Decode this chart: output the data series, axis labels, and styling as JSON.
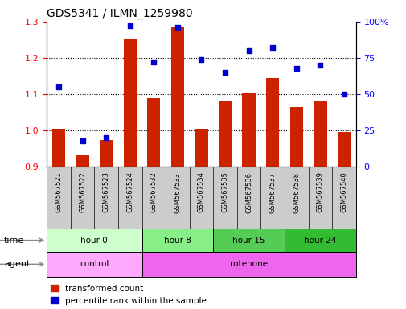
{
  "title": "GDS5341 / ILMN_1259980",
  "samples": [
    "GSM567521",
    "GSM567522",
    "GSM567523",
    "GSM567524",
    "GSM567532",
    "GSM567533",
    "GSM567534",
    "GSM567535",
    "GSM567536",
    "GSM567537",
    "GSM567538",
    "GSM567539",
    "GSM567540"
  ],
  "bar_values": [
    1.005,
    0.935,
    0.975,
    1.25,
    1.09,
    1.285,
    1.005,
    1.08,
    1.105,
    1.145,
    1.065,
    1.08,
    0.995
  ],
  "dot_values": [
    55,
    18,
    20,
    97,
    72,
    96,
    74,
    65,
    80,
    82,
    68,
    70,
    50
  ],
  "bar_color": "#cc2200",
  "dot_color": "#0000cc",
  "ylim_left": [
    0.9,
    1.3
  ],
  "ylim_right": [
    0,
    100
  ],
  "yticks_left": [
    0.9,
    1.0,
    1.1,
    1.2,
    1.3
  ],
  "yticks_right": [
    0,
    25,
    50,
    75,
    100
  ],
  "ytick_labels_right": [
    "0",
    "25",
    "50",
    "75",
    "100%"
  ],
  "hgrid_lines": [
    1.0,
    1.1,
    1.2
  ],
  "groups_time": [
    {
      "label": "hour 0",
      "start": 0,
      "end": 4,
      "color": "#ccffcc"
    },
    {
      "label": "hour 8",
      "start": 4,
      "end": 7,
      "color": "#88ee88"
    },
    {
      "label": "hour 15",
      "start": 7,
      "end": 10,
      "color": "#55cc55"
    },
    {
      "label": "hour 24",
      "start": 10,
      "end": 13,
      "color": "#33bb33"
    }
  ],
  "groups_agent": [
    {
      "label": "control",
      "start": 0,
      "end": 4,
      "color": "#ffaaff"
    },
    {
      "label": "rotenone",
      "start": 4,
      "end": 13,
      "color": "#ee66ee"
    }
  ],
  "legend_red": "transformed count",
  "legend_blue": "percentile rank within the sample",
  "time_label": "time",
  "agent_label": "agent",
  "sample_bg_color": "#cccccc",
  "background_color": "#ffffff"
}
